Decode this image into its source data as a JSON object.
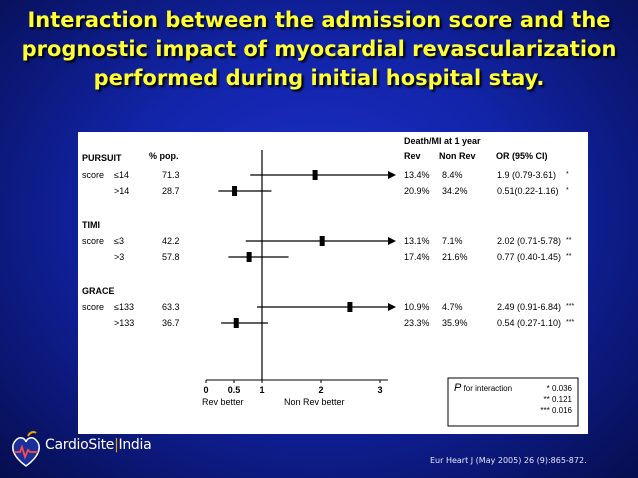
{
  "slide": {
    "title": "Interaction between the admission score and the prognostic impact of myocardial revascularization performed during initial hospital stay.",
    "citation": "Eur Heart J (May 2005) 26 (9):865-872.",
    "logo": {
      "brand": "CardioSite",
      "separator": "|",
      "suffix": "India"
    }
  },
  "chart_data": {
    "type": "forest",
    "header": {
      "group_col": "",
      "pct_col": "% pop.",
      "outcome_title": "Death/MI at 1 year",
      "rev_col": "Rev",
      "nonrev_col": "Non Rev",
      "or_col": "OR (95% CI)"
    },
    "groups": [
      {
        "name": "PURSUIT",
        "rows": [
          {
            "prefix": "score",
            "label": "≤14",
            "pct": "71.3",
            "rev": "13.4%",
            "nonrev": "8.4%",
            "or_text": "1.9 (0.79-3.61)",
            "sig": "*",
            "or": 1.9,
            "lo": 0.79,
            "hi": 3.61,
            "arrow": true
          },
          {
            "prefix": "",
            "label": ">14",
            "pct": "28.7",
            "rev": "20.9%",
            "nonrev": "34.2%",
            "or_text": "0.51(0.22-1.16)",
            "sig": "*",
            "or": 0.51,
            "lo": 0.22,
            "hi": 1.16,
            "arrow": false
          }
        ]
      },
      {
        "name": "TIMI",
        "rows": [
          {
            "prefix": "score",
            "label": "≤3",
            "pct": "42.2",
            "rev": "13.1%",
            "nonrev": "7.1%",
            "or_text": "2.02 (0.71-5.78)",
            "sig": "**",
            "or": 2.02,
            "lo": 0.71,
            "hi": 5.78,
            "arrow": true
          },
          {
            "prefix": "",
            "label": ">3",
            "pct": "57.8",
            "rev": "17.4%",
            "nonrev": "21.6%",
            "or_text": "0.77 (0.40-1.45)",
            "sig": "**",
            "or": 0.77,
            "lo": 0.4,
            "hi": 1.45,
            "arrow": false
          }
        ]
      },
      {
        "name": "GRACE",
        "rows": [
          {
            "prefix": "score",
            "label": "≤133",
            "pct": "63.3",
            "rev": "10.9%",
            "nonrev": "4.7%",
            "or_text": "2.49 (0.91-6.84)",
            "sig": "***",
            "or": 2.49,
            "lo": 0.91,
            "hi": 6.84,
            "arrow": true
          },
          {
            "prefix": "",
            "label": ">133",
            "pct": "36.7",
            "rev": "23.3%",
            "nonrev": "35.9%",
            "or_text": "0.54 (0.27-1.10)",
            "sig": "***",
            "or": 0.54,
            "lo": 0.27,
            "hi": 1.1,
            "arrow": false
          }
        ]
      }
    ],
    "x_axis": {
      "ticks": [
        {
          "value": 0,
          "label": "0"
        },
        {
          "value": 0.5,
          "label": "0.5"
        },
        {
          "value": 1,
          "label": "1"
        },
        {
          "value": 2,
          "label": "2"
        },
        {
          "value": 3,
          "label": "3"
        }
      ],
      "reference": 1,
      "left_label": "Rev better",
      "right_label": "Non Rev better"
    },
    "interaction": {
      "label_p": "P",
      "label_rest": " for interaction",
      "values": [
        "* 0.036",
        "** 0.121",
        "*** 0.016"
      ]
    }
  }
}
